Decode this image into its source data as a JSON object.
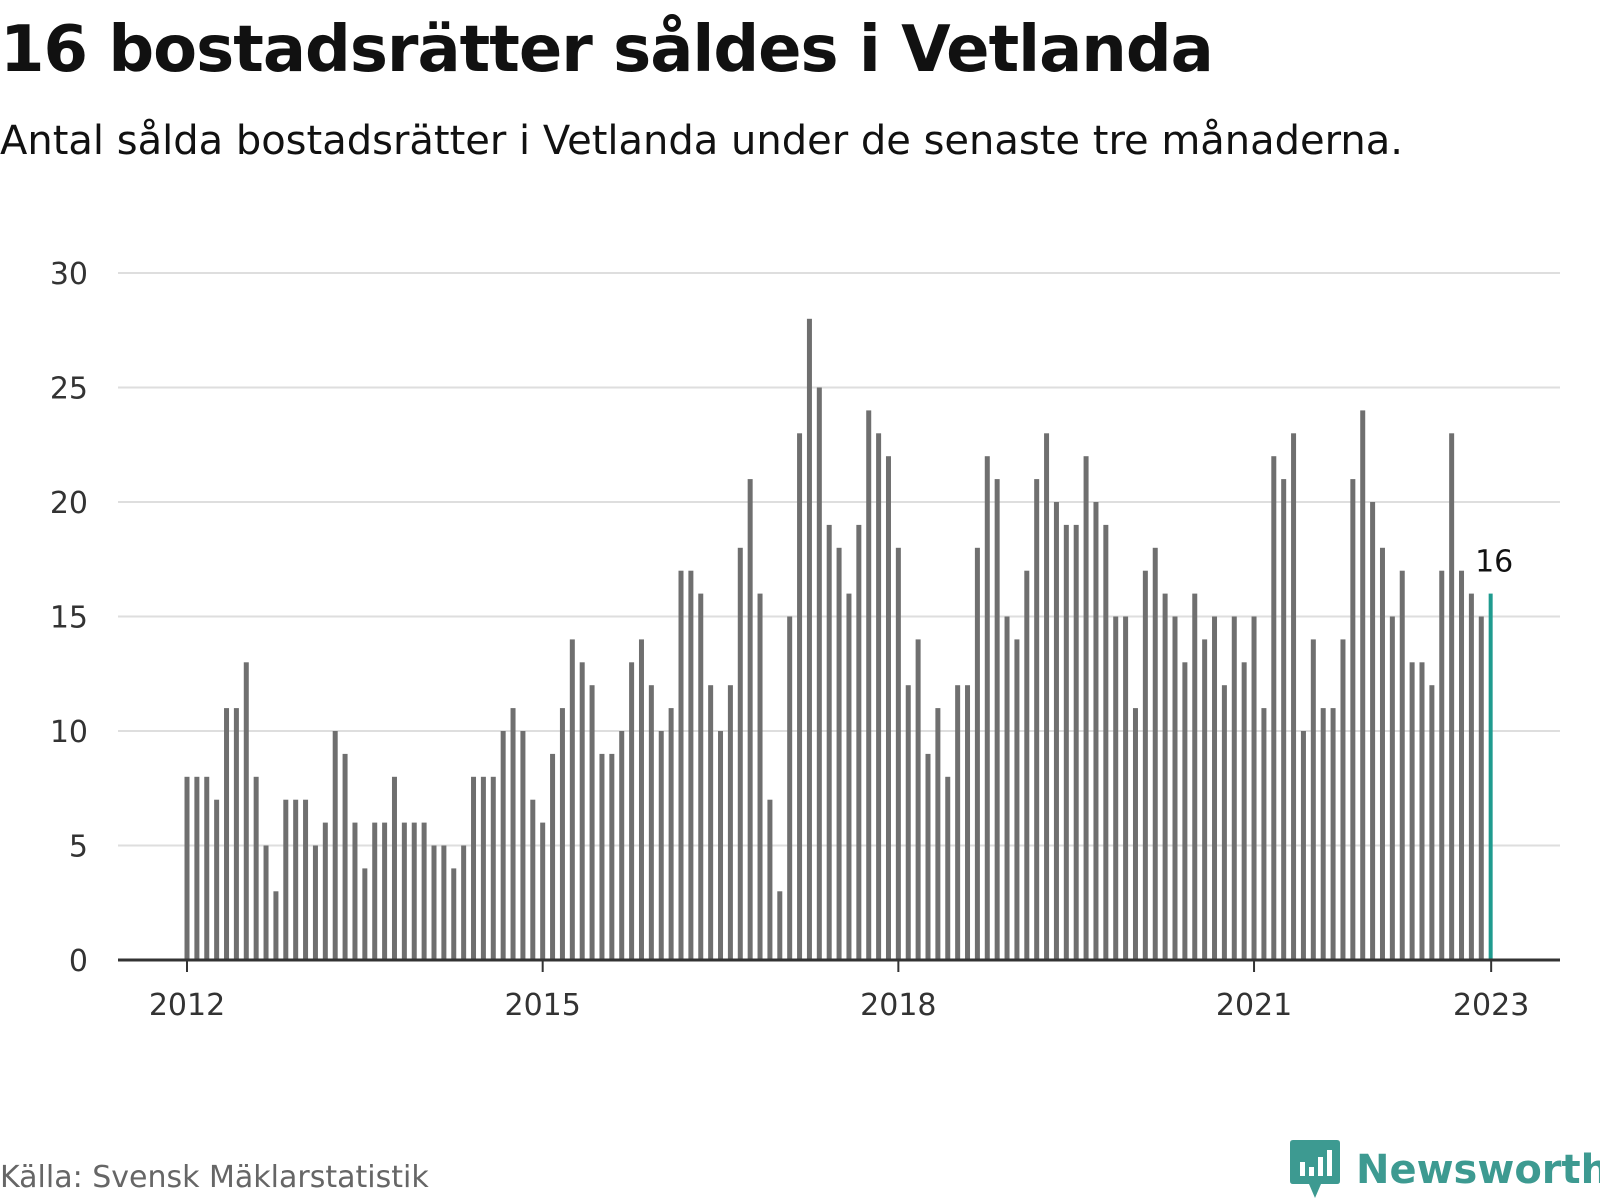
{
  "title": "16 bostadsrätter såldes i Vetlanda",
  "subtitle": "Antal sålda bostadsrätter i Vetlanda under de senaste tre månaderna.",
  "source": "Källa: Svensk Mäklarstatistik",
  "brand": {
    "name": "Newsworthy",
    "icon": "newsworthy-logo-icon"
  },
  "colors": {
    "bar": "#6f6f6f",
    "highlight": "#1f9b8f",
    "grid": "#dedede",
    "axis": "#333333",
    "brand": "#3d9a91"
  },
  "chart_data": {
    "type": "bar",
    "x_ticks": [
      "2012",
      "2015",
      "2018",
      "2021",
      "2023"
    ],
    "y_ticks": [
      "0",
      "5",
      "10",
      "15",
      "20",
      "25",
      "30"
    ],
    "ylim": [
      0,
      30
    ],
    "grid": true,
    "first_month": "2012-01",
    "values": [
      8,
      8,
      8,
      7,
      11,
      11,
      13,
      8,
      5,
      3,
      7,
      7,
      7,
      5,
      6,
      10,
      9,
      6,
      4,
      6,
      6,
      8,
      6,
      6,
      6,
      5,
      5,
      4,
      5,
      8,
      8,
      8,
      10,
      11,
      10,
      7,
      6,
      9,
      11,
      14,
      13,
      12,
      9,
      9,
      10,
      13,
      14,
      12,
      10,
      11,
      17,
      17,
      16,
      12,
      10,
      12,
      18,
      21,
      16,
      7,
      3,
      15,
      23,
      28,
      25,
      19,
      18,
      16,
      19,
      24,
      23,
      22,
      18,
      12,
      14,
      9,
      11,
      8,
      12,
      12,
      18,
      22,
      21,
      15,
      14,
      17,
      21,
      23,
      20,
      19,
      19,
      22,
      20,
      19,
      15,
      15,
      11,
      17,
      18,
      16,
      15,
      13,
      16,
      14,
      15,
      12,
      15,
      13,
      15,
      11,
      22,
      21,
      23,
      10,
      14,
      11,
      11,
      14,
      21,
      24,
      20,
      18,
      15,
      17,
      13,
      13,
      12,
      17,
      23,
      17,
      16,
      15,
      16
    ],
    "highlight_label": "16"
  }
}
